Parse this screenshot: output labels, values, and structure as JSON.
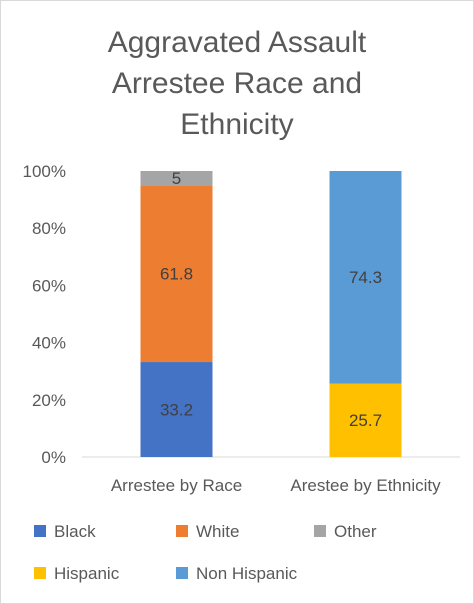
{
  "chart_data": {
    "type": "bar",
    "stacked": true,
    "percent": true,
    "title_lines": [
      "Aggravated Assault",
      "Arrestee Race and",
      "Ethnicity"
    ],
    "categories": [
      "Arrestee by Race",
      "Arestee by Ethnicity"
    ],
    "series": [
      {
        "name": "Black",
        "values": [
          33.2,
          null
        ],
        "color": "#4472c4",
        "label_color": "#404040"
      },
      {
        "name": "White",
        "values": [
          61.8,
          null
        ],
        "color": "#ed7d31",
        "label_color": "#404040"
      },
      {
        "name": "Other",
        "values": [
          5,
          null
        ],
        "color": "#a5a5a5",
        "label_color": "#404040"
      },
      {
        "name": "Hispanic",
        "values": [
          null,
          25.7
        ],
        "color": "#ffc000",
        "label_color": "#404040"
      },
      {
        "name": "Non Hispanic",
        "values": [
          null,
          74.3
        ],
        "color": "#5b9bd5",
        "label_color": "#404040"
      }
    ],
    "y_ticks": [
      "0%",
      "20%",
      "40%",
      "60%",
      "80%",
      "100%"
    ],
    "ylim": [
      0,
      100
    ],
    "grid": false,
    "legend_position": "bottom"
  }
}
